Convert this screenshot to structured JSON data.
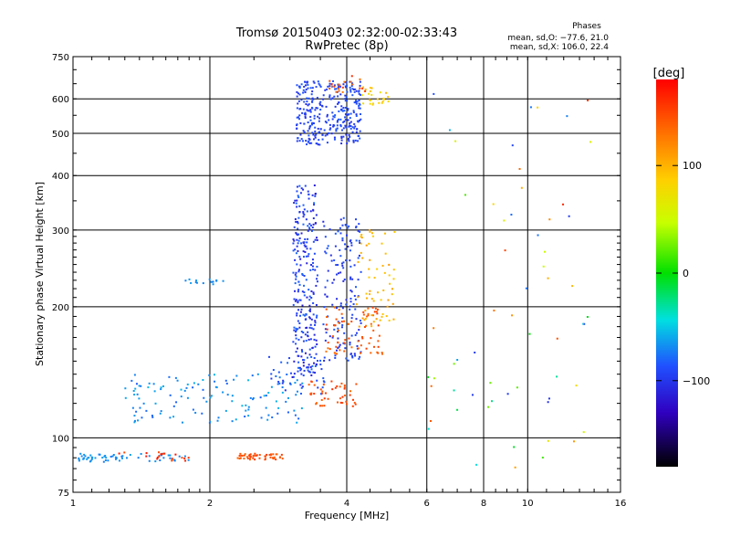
{
  "chart_data": {
    "type": "scatter",
    "title": "Tromsø 20150403 02:32:00-02:33:43",
    "subtitle": "RwPretec (8p)",
    "xlabel": "Frequency [MHz]",
    "ylabel": "Stationary phase Virtual Height [km]",
    "x_scale": "log",
    "y_scale": "log",
    "xlim": [
      1,
      16
    ],
    "ylim": [
      75,
      750
    ],
    "x_ticks": [
      1,
      2,
      4,
      6,
      8,
      10,
      16
    ],
    "x_tick_labels": [
      "1",
      "2",
      "4",
      "6",
      "8",
      "10",
      "16"
    ],
    "y_ticks": [
      75,
      100,
      200,
      300,
      400,
      500,
      600,
      750
    ],
    "y_tick_labels": [
      "75",
      "100",
      "200",
      "300",
      "400",
      "500",
      "600",
      "750"
    ],
    "grid": true,
    "phases_box": {
      "title": "Phases",
      "line1": "mean, sd,O: −77.6, 21.0",
      "line2": "mean, sd,X: 106.0, 22.4"
    },
    "colorbar": {
      "label": "[deg]",
      "range": [
        -180,
        180
      ],
      "ticks": [
        100,
        0,
        -100
      ],
      "tick_labels": [
        "100",
        "0",
        "−100"
      ]
    },
    "clusters": [
      {
        "x": [
          1.0,
          1.8
        ],
        "y": [
          88,
          92
        ],
        "n": 60,
        "phase": [
          -70,
          -85
        ]
      },
      {
        "x": [
          1.25,
          1.85
        ],
        "y": [
          88,
          93
        ],
        "n": 20,
        "phase": [
          150,
          175
        ]
      },
      {
        "x": [
          2.3,
          2.9
        ],
        "y": [
          89,
          92
        ],
        "n": 50,
        "phase": [
          140,
          160
        ]
      },
      {
        "x": [
          1.3,
          3.2
        ],
        "y": [
          108,
          140
        ],
        "n": 130,
        "phase": [
          -60,
          -95
        ]
      },
      {
        "x": [
          1.75,
          2.2
        ],
        "y": [
          225,
          232
        ],
        "n": 15,
        "phase": [
          -70,
          -80
        ]
      },
      {
        "x": [
          2.7,
          3.6
        ],
        "y": [
          125,
          155
        ],
        "n": 40,
        "phase": [
          -90,
          -135
        ]
      },
      {
        "x": [
          3.05,
          3.45
        ],
        "y": [
          140,
          380
        ],
        "n": 260,
        "phase": [
          -90,
          -135
        ]
      },
      {
        "x": [
          3.55,
          4.3
        ],
        "y": [
          150,
          320
        ],
        "n": 150,
        "phase": [
          -95,
          -125
        ]
      },
      {
        "x": [
          3.3,
          4.2
        ],
        "y": [
          118,
          135
        ],
        "n": 45,
        "phase": [
          140,
          165
        ]
      },
      {
        "x": [
          3.6,
          4.8
        ],
        "y": [
          155,
          200
        ],
        "n": 70,
        "phase": [
          135,
          160
        ]
      },
      {
        "x": [
          4.2,
          5.1
        ],
        "y": [
          180,
          300
        ],
        "n": 60,
        "phase": [
          95,
          120
        ]
      },
      {
        "x": [
          3.1,
          4.3
        ],
        "y": [
          470,
          660
        ],
        "n": 320,
        "phase": [
          -95,
          -120
        ]
      },
      {
        "x": [
          4.3,
          5.0
        ],
        "y": [
          580,
          640
        ],
        "n": 25,
        "phase": [
          80,
          120
        ]
      },
      {
        "x": [
          3.6,
          4.4
        ],
        "y": [
          620,
          680
        ],
        "n": 20,
        "phase": [
          130,
          170
        ]
      },
      {
        "x": [
          6.0,
          14.5
        ],
        "y": [
          85,
          650
        ],
        "n": 60,
        "phase": [
          -130,
          170
        ]
      }
    ]
  }
}
